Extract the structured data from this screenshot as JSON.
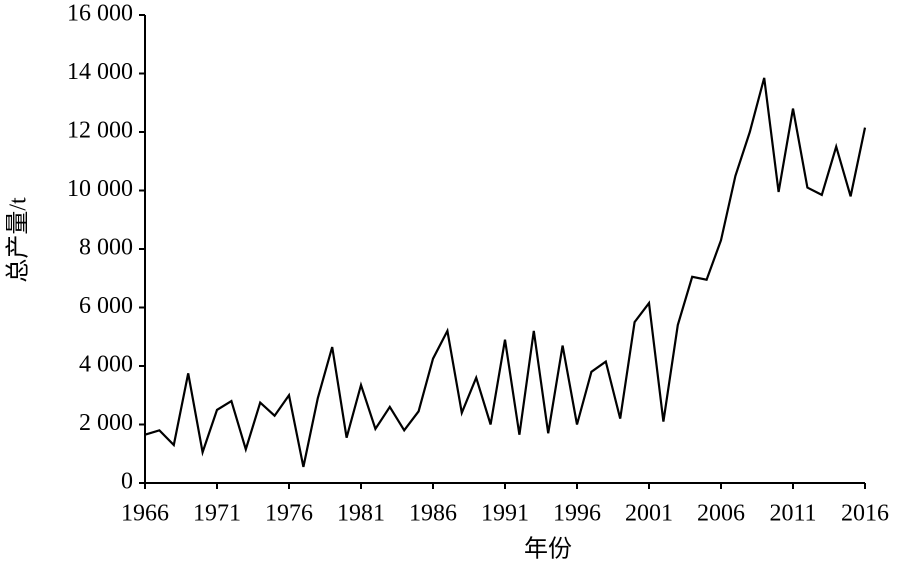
{
  "chart_data": {
    "type": "line",
    "xlabel": "年份",
    "ylabel": "总产量/t",
    "x": [
      1966,
      1967,
      1968,
      1969,
      1970,
      1971,
      1972,
      1973,
      1974,
      1975,
      1976,
      1977,
      1978,
      1979,
      1980,
      1981,
      1982,
      1983,
      1984,
      1985,
      1986,
      1987,
      1988,
      1989,
      1990,
      1991,
      1992,
      1993,
      1994,
      1995,
      1996,
      1997,
      1998,
      1999,
      2000,
      2001,
      2002,
      2003,
      2004,
      2005,
      2006,
      2007,
      2008,
      2009,
      2010,
      2011,
      2012,
      2013,
      2014,
      2015,
      2016
    ],
    "series": [
      {
        "color": "#000000",
        "values": [
          1650,
          1800,
          1300,
          3750,
          1050,
          2500,
          2800,
          1150,
          2750,
          2300,
          3000,
          550,
          2900,
          4650,
          1550,
          3350,
          1850,
          2600,
          1800,
          2450,
          4250,
          5200,
          2400,
          3600,
          2000,
          4900,
          1650,
          5200,
          1700,
          4700,
          2000,
          3800,
          4150,
          2200,
          5500,
          6150,
          2100,
          5400,
          7050,
          6950,
          8300,
          10500,
          12000,
          13850,
          9950,
          12800,
          10100,
          9850,
          11500,
          9800,
          12150
        ]
      }
    ],
    "xlim": [
      1966,
      2016
    ],
    "xticks": [
      1966,
      1971,
      1976,
      1981,
      1986,
      1991,
      1996,
      2001,
      2006,
      2011,
      2016
    ],
    "ylim": [
      0,
      16000
    ],
    "yticks": [
      0,
      {
        "value": 2000,
        "label": "2 000"
      },
      {
        "value": 4000,
        "label": "4 000"
      },
      {
        "value": 6000,
        "label": "6 000"
      },
      {
        "value": 8000,
        "label": "8 000"
      },
      {
        "value": 10000,
        "label": "10 000"
      },
      {
        "value": 12000,
        "label": "12 000"
      },
      {
        "value": 14000,
        "label": "14 000"
      },
      {
        "value": 16000,
        "label": "16 000"
      }
    ],
    "grid": false
  }
}
